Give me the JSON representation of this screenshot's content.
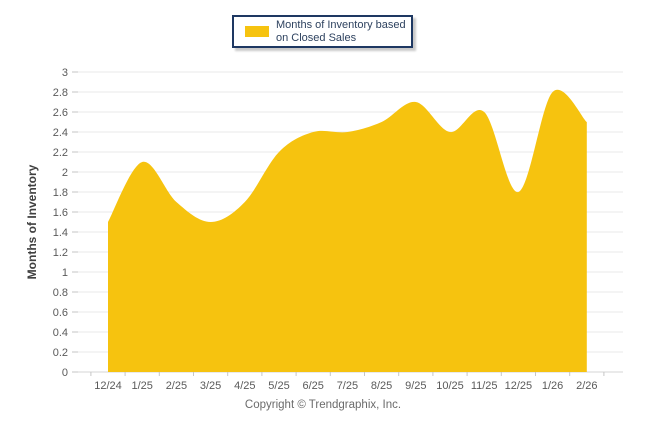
{
  "legend": {
    "label_line1": "Months of Inventory based",
    "label_line2": "on Closed Sales",
    "swatch_color": "#F6C30F",
    "border_color": "#1e3862"
  },
  "footer": {
    "copyright": "Copyright © Trendgraphix, Inc."
  },
  "colors": {
    "area": "#F6C30F",
    "grid": "#eaeaea",
    "axis": "#d4d4d4",
    "tick": "#c6c6c6",
    "tick_label": "#5a5a5a"
  },
  "chart_data": {
    "type": "area",
    "title": "",
    "xlabel": "",
    "ylabel": "Months of Inventory",
    "categories": [
      "12/24",
      "1/25",
      "2/25",
      "3/25",
      "4/25",
      "5/25",
      "6/25",
      "7/25",
      "8/25",
      "9/25",
      "10/25",
      "11/25",
      "12/25",
      "1/26",
      "2/26"
    ],
    "series": [
      {
        "name": "Months of Inventory based on Closed Sales",
        "values": [
          1.5,
          2.1,
          1.7,
          1.5,
          1.7,
          2.2,
          2.4,
          2.4,
          2.5,
          2.7,
          2.4,
          2.6,
          1.8,
          2.8,
          2.5
        ]
      }
    ],
    "ylim": [
      0,
      3
    ],
    "ytick_step": 0.2,
    "grid": true,
    "smooth": true,
    "legend_position": "top-center",
    "area_color": "#F6C30F"
  }
}
